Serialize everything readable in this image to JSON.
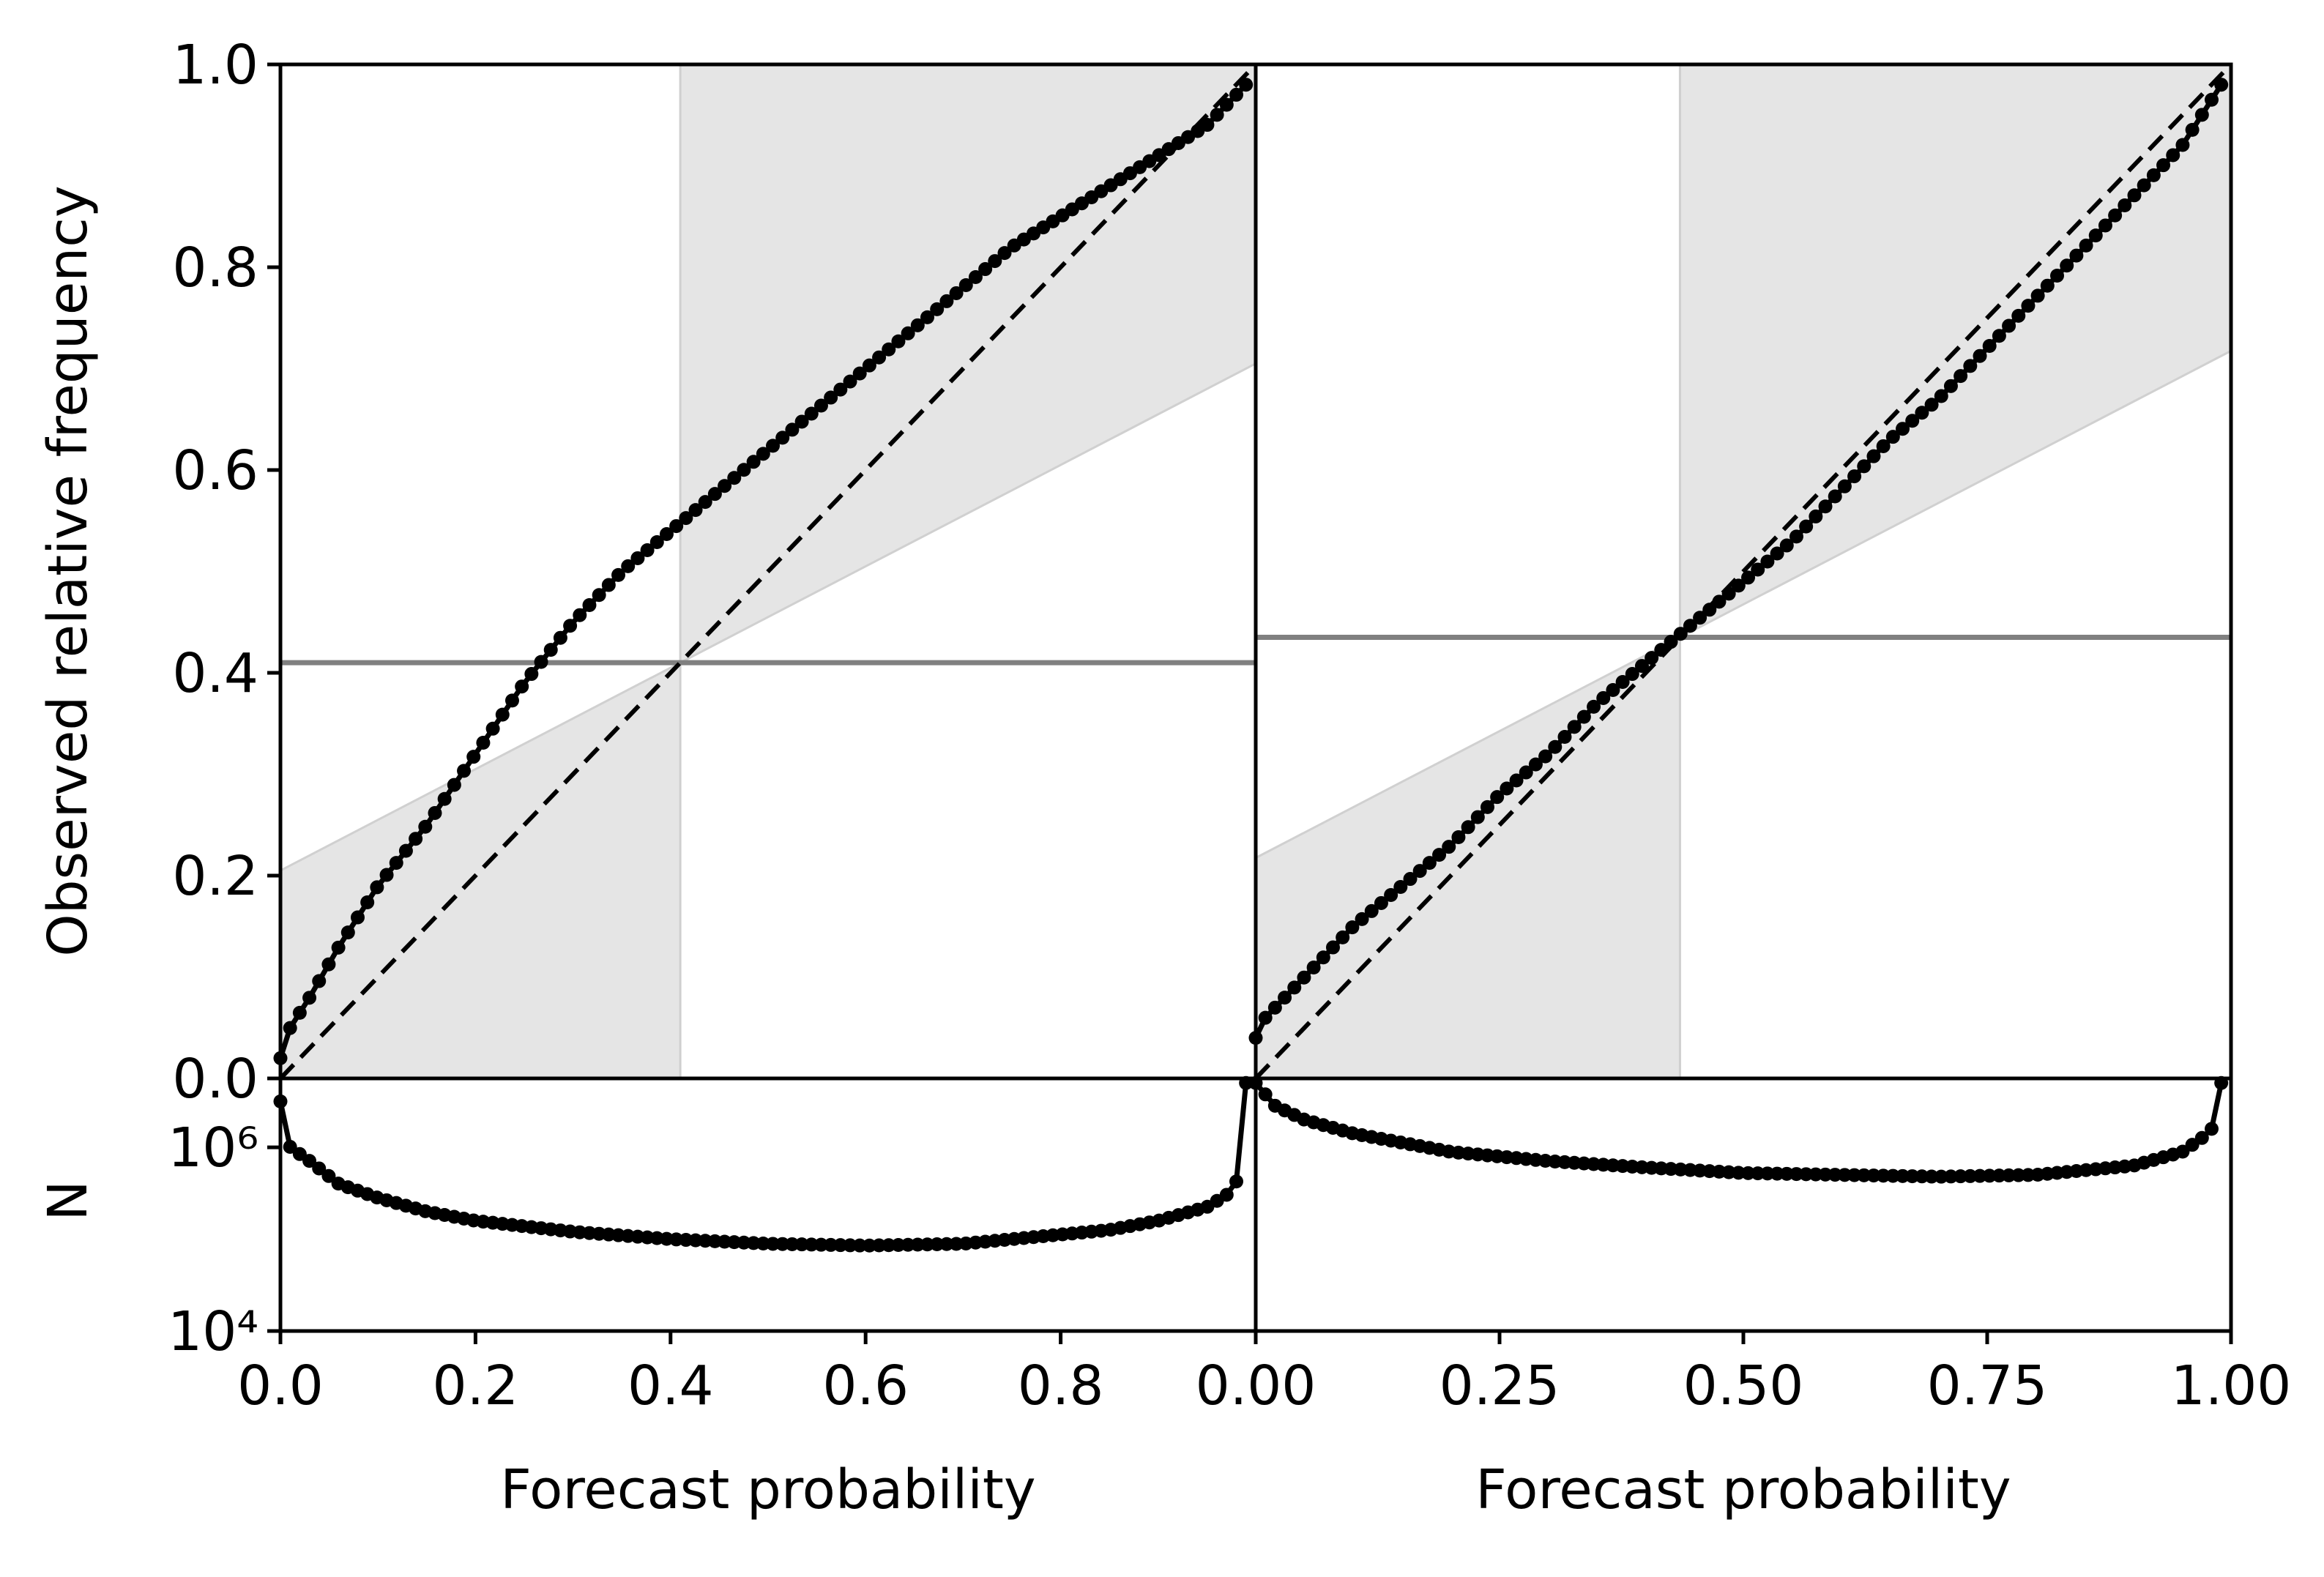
{
  "chart_data": {
    "type": "line",
    "ylabel": "Observed relative frequency",
    "count_ylabel": "N",
    "colors": {
      "curve": "#000000",
      "climatology_line": "#808080",
      "skill_region": "#e5e5e5",
      "diagonal": "#000000"
    },
    "panels": [
      {
        "xlabel": "Forecast probability",
        "xlim": [
          0,
          1
        ],
        "ylim": [
          0,
          1
        ],
        "xticks": [
          "0.0",
          "0.2",
          "0.4",
          "0.6",
          "0.8"
        ],
        "yticks": [
          "0.0",
          "0.2",
          "0.4",
          "0.6",
          "0.8",
          "1.0"
        ],
        "climatology": 0.41,
        "reliability": {
          "x": [
            0.0,
            0.01,
            0.03,
            0.06,
            0.1,
            0.15,
            0.2,
            0.25,
            0.3,
            0.35,
            0.4,
            0.45,
            0.5,
            0.55,
            0.6,
            0.65,
            0.7,
            0.75,
            0.8,
            0.85,
            0.9,
            0.95,
            0.99
          ],
          "y": [
            0.02,
            0.05,
            0.08,
            0.13,
            0.19,
            0.25,
            0.32,
            0.39,
            0.45,
            0.5,
            0.54,
            0.58,
            0.62,
            0.66,
            0.7,
            0.74,
            0.78,
            0.82,
            0.85,
            0.88,
            0.91,
            0.94,
            0.98
          ]
        },
        "count": {
          "ylim_log10": [
            4,
            6.75
          ],
          "yticks": [
            "10⁴",
            "10⁶"
          ],
          "x": [
            0.0,
            0.01,
            0.03,
            0.06,
            0.1,
            0.15,
            0.2,
            0.3,
            0.4,
            0.5,
            0.6,
            0.7,
            0.8,
            0.85,
            0.9,
            0.95,
            0.97,
            0.985,
            0.99
          ],
          "log10_n": [
            6.5,
            6.0,
            5.85,
            5.6,
            5.45,
            5.3,
            5.2,
            5.08,
            5.0,
            4.95,
            4.93,
            4.95,
            5.05,
            5.1,
            5.2,
            5.35,
            5.48,
            5.7,
            6.7
          ]
        }
      },
      {
        "xlabel": "Forecast probability",
        "xlim": [
          0,
          1
        ],
        "ylim": [
          0,
          1
        ],
        "xticks": [
          "0.00",
          "0.25",
          "0.50",
          "0.75",
          "1.00"
        ],
        "yticks": [],
        "climatology": 0.435,
        "reliability": {
          "x": [
            0.0,
            0.01,
            0.05,
            0.1,
            0.15,
            0.2,
            0.25,
            0.3,
            0.35,
            0.4,
            0.45,
            0.5,
            0.55,
            0.6,
            0.65,
            0.7,
            0.75,
            0.8,
            0.85,
            0.9,
            0.95,
            0.99
          ],
          "y": [
            0.04,
            0.06,
            0.1,
            0.15,
            0.19,
            0.23,
            0.28,
            0.32,
            0.37,
            0.41,
            0.45,
            0.49,
            0.53,
            0.58,
            0.63,
            0.67,
            0.72,
            0.77,
            0.82,
            0.87,
            0.92,
            0.98
          ]
        },
        "count": {
          "ylim_log10": [
            4,
            6.75
          ],
          "yticks": [],
          "x": [
            0.0,
            0.02,
            0.05,
            0.1,
            0.2,
            0.3,
            0.4,
            0.5,
            0.6,
            0.7,
            0.8,
            0.9,
            0.95,
            0.97,
            0.985,
            0.99
          ],
          "log10_n": [
            6.7,
            6.45,
            6.3,
            6.15,
            5.95,
            5.85,
            5.78,
            5.72,
            5.7,
            5.68,
            5.7,
            5.8,
            5.95,
            6.1,
            6.25,
            6.7
          ]
        }
      }
    ]
  }
}
